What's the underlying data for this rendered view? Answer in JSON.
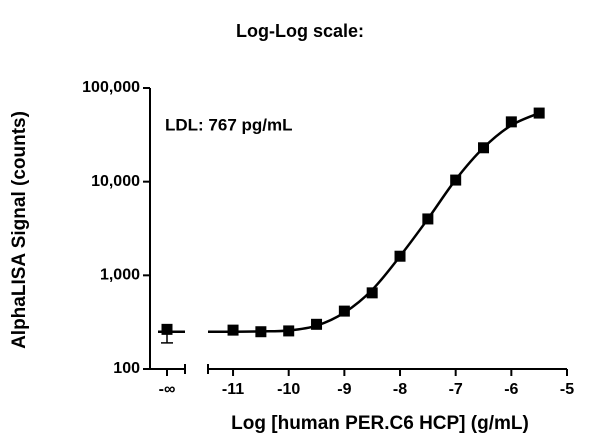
{
  "chart_data": {
    "type": "scatter",
    "title": "Log-Log scale:",
    "annotation": "LDL: 767 pg/mL",
    "xlabel": "Log [human PER.C6 HCP] (g/mL)",
    "ylabel": "AlphaLISA Signal (counts)",
    "log_y": true,
    "color": "#000000",
    "xlim": [
      -11.45,
      -5
    ],
    "xticks": [
      -11,
      -10,
      -9,
      -8,
      -7,
      -6,
      -5
    ],
    "ylim": [
      100,
      100000
    ],
    "yticks": [
      100,
      {
        "value": 1000,
        "label": "1,000"
      },
      {
        "value": 10000,
        "label": "10,000"
      },
      {
        "value": 100000,
        "label": "100,000"
      }
    ],
    "blank": {
      "label": "-∞",
      "value": 265,
      "error": 75
    },
    "series": [
      {
        "x": [
          -11,
          -10.5,
          -10,
          -9.5,
          -9,
          -8.5,
          -8,
          -7.5,
          -7,
          -6.5,
          -6,
          -5.5
        ],
        "values": [
          260,
          250,
          255,
          300,
          415,
          650,
          1600,
          4000,
          10400,
          23000,
          43500,
          54000
        ]
      }
    ],
    "fit": {
      "x": [
        -11.45,
        -11,
        -10.5,
        -10,
        -9.5,
        -9,
        -8.5,
        -8,
        -7.5,
        -7,
        -6.5,
        -6,
        -5.5
      ],
      "values": [
        250,
        250,
        252,
        258,
        290,
        400,
        700,
        1600,
        4000,
        10500,
        23000,
        40000,
        54000
      ]
    }
  }
}
